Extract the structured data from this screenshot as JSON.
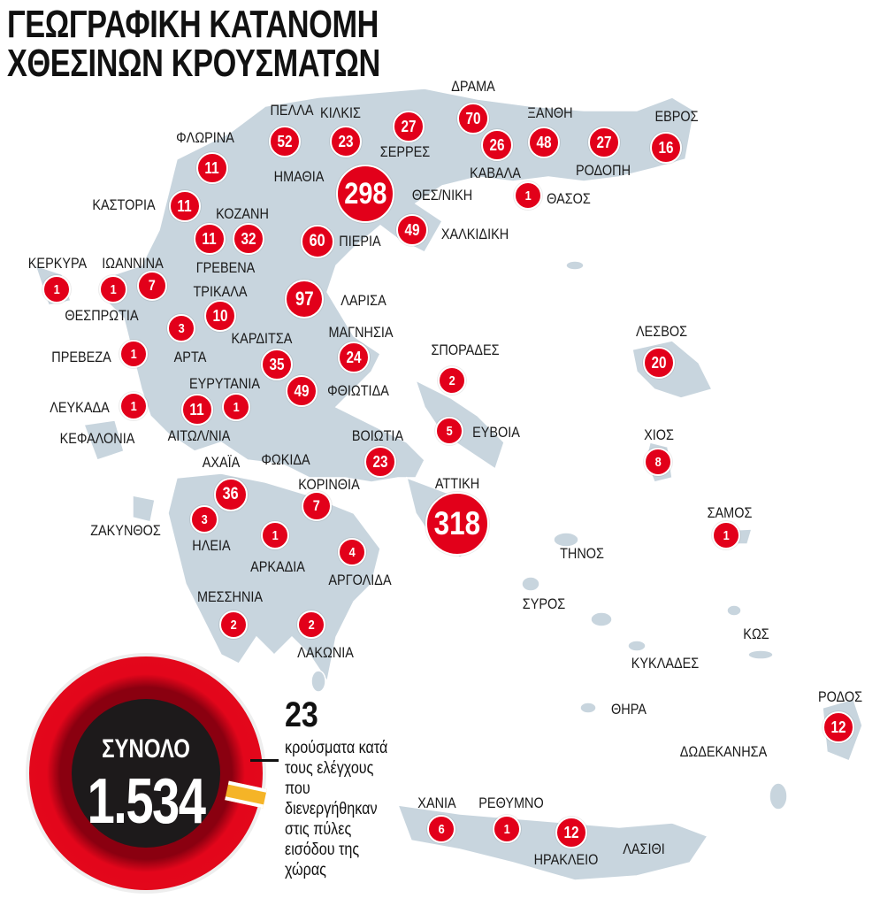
{
  "title": {
    "line1": "ΓΕΩΓΡΑΦΙΚΗ ΚΑΤΑΝΟΜΗ",
    "line2": "ΧΘΕΣΙΝΩΝ ΚΡΟΥΣΜΑΤΩΝ"
  },
  "colors": {
    "marker": "#e2001a",
    "land": "#c8d5de",
    "total_ring": "#e3061b",
    "total_core": "#1d1a1b",
    "gates_slice": "#f5b427"
  },
  "total": {
    "label": "ΣΥΝΟΛΟ",
    "value": "1.534"
  },
  "entry_gates": {
    "value": "23",
    "text": "κρούσματα κατά τους ελέγχους που διενεργήθηκαν στις πύλες εισόδου της χώρας"
  },
  "regions": [
    {
      "name": "ΠΕΛΛΑ",
      "cases": "52"
    },
    {
      "name": "ΚΙΛΚΙΣ",
      "cases": "23"
    },
    {
      "name": "ΣΕΡΡΕΣ",
      "cases": "27"
    },
    {
      "name": "ΔΡΑΜΑ",
      "cases": "70"
    },
    {
      "name": "ΞΑΝΘΗ",
      "cases": "48"
    },
    {
      "name": "ΕΒΡΟΣ",
      "cases": "16"
    },
    {
      "name": "ΚΑΒΑΛΑ",
      "cases": "26"
    },
    {
      "name": "ΡΟΔΟΠΗ",
      "cases": "27"
    },
    {
      "name": "ΦΛΩΡΙΝΑ",
      "cases": "11"
    },
    {
      "name": "ΗΜΑΘΙΑ",
      "cases": null
    },
    {
      "name": "ΘΕΣ/ΝΙΚΗ",
      "cases": "298"
    },
    {
      "name": "ΘΑΣΟΣ",
      "cases": "1"
    },
    {
      "name": "ΚΑΣΤΟΡΙΑ",
      "cases": "11"
    },
    {
      "name": "ΚΟΖΑΝΗ",
      "cases": "32"
    },
    {
      "name": "ΓΡΕΒΕΝΑ",
      "cases": "11"
    },
    {
      "name": "ΠΙΕΡΙΑ",
      "cases": "60"
    },
    {
      "name": "ΧΑΛΚΙΔΙΚΗ",
      "cases": "49"
    },
    {
      "name": "ΚΕΡΚΥΡΑ",
      "cases": "1"
    },
    {
      "name": "ΙΩΑΝΝΙΝΑ",
      "cases": "7"
    },
    {
      "name": "ΘΕΣΠΡΩΤΙΑ",
      "cases": "1"
    },
    {
      "name": "ΤΡΙΚΑΛΑ",
      "cases": "10"
    },
    {
      "name": "ΛΑΡΙΣΑ",
      "cases": "97"
    },
    {
      "name": "ΑΡΤΑ",
      "cases": "3"
    },
    {
      "name": "ΠΡΕΒΕΖΑ",
      "cases": "1"
    },
    {
      "name": "ΚΑΡΔΙΤΣΑ",
      "cases": "35"
    },
    {
      "name": "ΜΑΓΝΗΣΙΑ",
      "cases": "24"
    },
    {
      "name": "ΣΠΟΡΑΔΕΣ",
      "cases": "2"
    },
    {
      "name": "ΛΕΣΒΟΣ",
      "cases": "20"
    },
    {
      "name": "ΦΘΙΩΤΙΔΑ",
      "cases": "49"
    },
    {
      "name": "ΕΥΡΥΤΑΝΙΑ",
      "cases": "1"
    },
    {
      "name": "ΑΙΤΩΛ/ΝΙΑ",
      "cases": "11"
    },
    {
      "name": "ΛΕΥΚΑΔΑ",
      "cases": "1"
    },
    {
      "name": "ΚΕΦΑΛΟΝΙΑ",
      "cases": null
    },
    {
      "name": "ΕΥΒΟΙΑ",
      "cases": "5"
    },
    {
      "name": "ΧΙΟΣ",
      "cases": "8"
    },
    {
      "name": "ΒΟΙΩΤΙΑ",
      "cases": "23"
    },
    {
      "name": "ΑΧΑΪΑ",
      "cases": "36"
    },
    {
      "name": "ΦΩΚΙΔΑ",
      "cases": null
    },
    {
      "name": "ΚΟΡΙΝΘΙΑ",
      "cases": "7"
    },
    {
      "name": "ΑΤΤΙΚΗ",
      "cases": "318"
    },
    {
      "name": "ΖΑΚΥΝΘΟΣ",
      "cases": null
    },
    {
      "name": "ΗΛΕΙΑ",
      "cases": "3"
    },
    {
      "name": "ΑΡΚΑΔΙΑ",
      "cases": "1"
    },
    {
      "name": "ΑΡΓΟΛΙΔΑ",
      "cases": "4"
    },
    {
      "name": "ΣΑΜΟΣ",
      "cases": "1"
    },
    {
      "name": "ΤΗΝΟΣ",
      "cases": null
    },
    {
      "name": "ΣΥΡΟΣ",
      "cases": null
    },
    {
      "name": "ΜΕΣΣΗΝΙΑ",
      "cases": "2"
    },
    {
      "name": "ΛΑΚΩΝΙΑ",
      "cases": "2"
    },
    {
      "name": "ΚΩΣ",
      "cases": null
    },
    {
      "name": "ΚΥΚΛΑΔΕΣ",
      "cases": null
    },
    {
      "name": "ΘΗΡΑ",
      "cases": null
    },
    {
      "name": "ΡΟΔΟΣ",
      "cases": "12"
    },
    {
      "name": "ΔΩΔΕΚΑΝΗΣΑ",
      "cases": null
    },
    {
      "name": "ΧΑΝΙΑ",
      "cases": "6"
    },
    {
      "name": "ΡΕΘΥΜΝΟ",
      "cases": "1"
    },
    {
      "name": "ΗΡΑΚΛΕΙΟ",
      "cases": "12"
    },
    {
      "name": "ΛΑΣΙΘΙ",
      "cases": null
    }
  ]
}
